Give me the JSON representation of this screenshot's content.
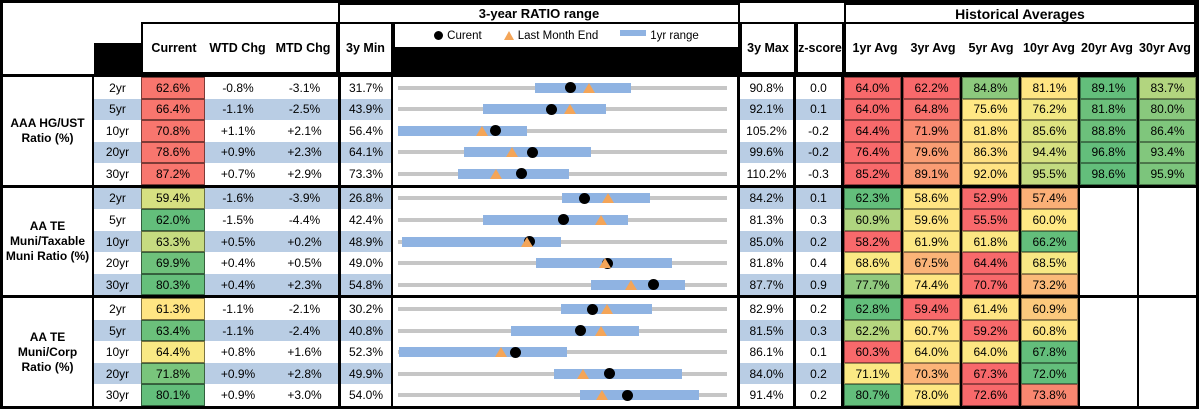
{
  "header": {
    "chart_title": "3-year RATIO range",
    "hist_title": "Historical Averages",
    "col_current": "Current",
    "col_wtd": "WTD Chg",
    "col_mtd": "MTD Chg",
    "col_3y_min": "3y Min",
    "col_3y_max": "3y Max",
    "col_zscore": "z-score",
    "avg_cols": [
      "1yr Avg",
      "3yr Avg",
      "5yr Avg",
      "10yr Avg",
      "20yr Avg",
      "30yr Avg"
    ],
    "legend": {
      "current": "Curent",
      "last_month": "Last Month End",
      "range": "1yr range"
    },
    "legend_icons": [
      "black-dot-icon",
      "orange-triangle-icon",
      "blue-bar-icon"
    ]
  },
  "colors": {
    "stripe_blue": "#B9CDE4",
    "range_bar_blue": "#8FB3E2",
    "track_gray": "#C6C6C6",
    "triangle_orange": "#F4A558",
    "dot_black": "#000000",
    "scale_red": "#F8696B",
    "scale_yellow": "#FFE583",
    "scale_green": "#63BE7B"
  },
  "groups": [
    {
      "label": "AAA HG/UST Ratio (%)",
      "rows": [
        {
          "tenor": "2yr",
          "current": "62.6%",
          "current_bg": "#F8766E",
          "wtd": "-0.8%",
          "mtd": "-3.1%",
          "min": "31.7%",
          "max": "90.8%",
          "z": "0.0",
          "avgs": [
            {
              "v": "64.0%",
              "bg": "#F8696B"
            },
            {
              "v": "62.2%",
              "bg": "#F8696B"
            },
            {
              "v": "84.8%",
              "bg": "#8CC97D"
            },
            {
              "v": "81.1%",
              "bg": "#FFE583"
            },
            {
              "v": "89.1%",
              "bg": "#63BE7B"
            },
            {
              "v": "83.7%",
              "bg": "#B2D57F"
            }
          ]
        },
        {
          "tenor": "5yr",
          "current": "66.4%",
          "current_bg": "#F8766E",
          "wtd": "-1.1%",
          "mtd": "-2.5%",
          "min": "43.9%",
          "max": "92.1%",
          "z": "0.1",
          "avgs": [
            {
              "v": "64.0%",
              "bg": "#F8696B"
            },
            {
              "v": "64.8%",
              "bg": "#F8716D"
            },
            {
              "v": "75.6%",
              "bg": "#FFE884"
            },
            {
              "v": "76.2%",
              "bg": "#F4E883"
            },
            {
              "v": "81.8%",
              "bg": "#6CC07B"
            },
            {
              "v": "80.0%",
              "bg": "#89C87D"
            }
          ]
        },
        {
          "tenor": "10yr",
          "current": "70.8%",
          "current_bg": "#F8766E",
          "wtd": "+1.1%",
          "mtd": "+2.1%",
          "min": "56.4%",
          "max": "105.2%",
          "z": "-0.2",
          "avgs": [
            {
              "v": "64.4%",
              "bg": "#F8696B"
            },
            {
              "v": "71.9%",
              "bg": "#F98B71"
            },
            {
              "v": "81.8%",
              "bg": "#FFE583"
            },
            {
              "v": "85.6%",
              "bg": "#DFE481"
            },
            {
              "v": "88.8%",
              "bg": "#6CC07B"
            },
            {
              "v": "86.4%",
              "bg": "#7FC67C"
            }
          ]
        },
        {
          "tenor": "20yr",
          "current": "78.6%",
          "current_bg": "#F8766E",
          "wtd": "+0.9%",
          "mtd": "+2.3%",
          "min": "64.1%",
          "max": "99.6%",
          "z": "-0.2",
          "avgs": [
            {
              "v": "76.4%",
              "bg": "#F8696B"
            },
            {
              "v": "79.6%",
              "bg": "#FA9D74"
            },
            {
              "v": "86.3%",
              "bg": "#FFE082"
            },
            {
              "v": "94.4%",
              "bg": "#D7E181"
            },
            {
              "v": "96.8%",
              "bg": "#63BE7B"
            },
            {
              "v": "93.4%",
              "bg": "#82C77D"
            }
          ]
        },
        {
          "tenor": "30yr",
          "current": "87.2%",
          "current_bg": "#F8766E",
          "wtd": "+0.7%",
          "mtd": "+2.9%",
          "min": "73.3%",
          "max": "110.2%",
          "z": "-0.3",
          "avgs": [
            {
              "v": "85.2%",
              "bg": "#F8696B"
            },
            {
              "v": "89.1%",
              "bg": "#FA9C74"
            },
            {
              "v": "92.0%",
              "bg": "#FFE383"
            },
            {
              "v": "95.5%",
              "bg": "#C3DB80"
            },
            {
              "v": "98.6%",
              "bg": "#63BE7B"
            },
            {
              "v": "95.9%",
              "bg": "#7CC57C"
            }
          ]
        }
      ]
    },
    {
      "label": "AA TE Muni/Taxable Muni Ratio (%)",
      "rows": [
        {
          "tenor": "2yr",
          "current": "59.4%",
          "current_bg": "#D6E081",
          "wtd": "-1.6%",
          "mtd": "-3.9%",
          "min": "26.8%",
          "max": "84.2%",
          "z": "0.1",
          "avgs": [
            {
              "v": "62.3%",
              "bg": "#63BE7B"
            },
            {
              "v": "58.6%",
              "bg": "#FFE583"
            },
            {
              "v": "52.9%",
              "bg": "#F8696B"
            },
            {
              "v": "57.4%",
              "bg": "#FBB077"
            },
            {
              "v": "",
              "bg": ""
            },
            {
              "v": "",
              "bg": ""
            }
          ]
        },
        {
          "tenor": "5yr",
          "current": "62.0%",
          "current_bg": "#63BE7B",
          "wtd": "-1.5%",
          "mtd": "-4.4%",
          "min": "42.4%",
          "max": "81.3%",
          "z": "0.3",
          "avgs": [
            {
              "v": "60.9%",
              "bg": "#AFD47F"
            },
            {
              "v": "59.6%",
              "bg": "#FEE583"
            },
            {
              "v": "55.5%",
              "bg": "#F8696B"
            },
            {
              "v": "60.0%",
              "bg": "#FFE984"
            },
            {
              "v": "",
              "bg": ""
            },
            {
              "v": "",
              "bg": ""
            }
          ]
        },
        {
          "tenor": "10yr",
          "current": "63.3%",
          "current_bg": "#C6DB80",
          "wtd": "+0.5%",
          "mtd": "+0.2%",
          "min": "48.9%",
          "max": "85.0%",
          "z": "0.2",
          "avgs": [
            {
              "v": "58.2%",
              "bg": "#F8696B"
            },
            {
              "v": "61.9%",
              "bg": "#FCE783"
            },
            {
              "v": "61.8%",
              "bg": "#FCE783"
            },
            {
              "v": "66.2%",
              "bg": "#63BE7B"
            },
            {
              "v": "",
              "bg": ""
            },
            {
              "v": "",
              "bg": ""
            }
          ]
        },
        {
          "tenor": "20yr",
          "current": "69.9%",
          "current_bg": "#6EC17B",
          "wtd": "+0.4%",
          "mtd": "+0.5%",
          "min": "49.0%",
          "max": "81.8%",
          "z": "0.4",
          "avgs": [
            {
              "v": "68.6%",
              "bg": "#FAE984"
            },
            {
              "v": "67.5%",
              "bg": "#FBB478"
            },
            {
              "v": "64.4%",
              "bg": "#F8696B"
            },
            {
              "v": "68.5%",
              "bg": "#F8E884"
            },
            {
              "v": "",
              "bg": ""
            },
            {
              "v": "",
              "bg": ""
            }
          ]
        },
        {
          "tenor": "30yr",
          "current": "80.3%",
          "current_bg": "#65BF7B",
          "wtd": "+0.4%",
          "mtd": "+2.3%",
          "min": "54.8%",
          "max": "87.7%",
          "z": "0.9",
          "avgs": [
            {
              "v": "77.7%",
              "bg": "#90CA7E"
            },
            {
              "v": "74.4%",
              "bg": "#FFE683"
            },
            {
              "v": "70.7%",
              "bg": "#F8696B"
            },
            {
              "v": "73.2%",
              "bg": "#FBBA79"
            },
            {
              "v": "",
              "bg": ""
            },
            {
              "v": "",
              "bg": ""
            }
          ]
        }
      ]
    },
    {
      "label": "AA TE Muni/Corp Ratio (%)",
      "rows": [
        {
          "tenor": "2yr",
          "current": "61.3%",
          "current_bg": "#FFE583",
          "wtd": "-1.1%",
          "mtd": "-2.1%",
          "min": "30.2%",
          "max": "82.9%",
          "z": "0.2",
          "avgs": [
            {
              "v": "62.8%",
              "bg": "#63BE7B"
            },
            {
              "v": "59.4%",
              "bg": "#F8696B"
            },
            {
              "v": "61.4%",
              "bg": "#FFE583"
            },
            {
              "v": "60.9%",
              "bg": "#FCC97D"
            },
            {
              "v": "",
              "bg": ""
            },
            {
              "v": "",
              "bg": ""
            }
          ]
        },
        {
          "tenor": "5yr",
          "current": "63.4%",
          "current_bg": "#6BC07B",
          "wtd": "-1.1%",
          "mtd": "-2.4%",
          "min": "40.8%",
          "max": "81.5%",
          "z": "0.3",
          "avgs": [
            {
              "v": "62.2%",
              "bg": "#B5D67F"
            },
            {
              "v": "60.7%",
              "bg": "#FFE683"
            },
            {
              "v": "59.2%",
              "bg": "#F8696B"
            },
            {
              "v": "60.8%",
              "bg": "#FEE583"
            },
            {
              "v": "",
              "bg": ""
            },
            {
              "v": "",
              "bg": ""
            }
          ]
        },
        {
          "tenor": "10yr",
          "current": "64.4%",
          "current_bg": "#F9E984",
          "wtd": "+0.8%",
          "mtd": "+1.6%",
          "min": "52.3%",
          "max": "86.1%",
          "z": "0.1",
          "avgs": [
            {
              "v": "60.3%",
              "bg": "#F8696B"
            },
            {
              "v": "64.0%",
              "bg": "#FDE783"
            },
            {
              "v": "64.0%",
              "bg": "#FDE783"
            },
            {
              "v": "67.8%",
              "bg": "#63BE7B"
            },
            {
              "v": "",
              "bg": ""
            },
            {
              "v": "",
              "bg": ""
            }
          ]
        },
        {
          "tenor": "20yr",
          "current": "71.8%",
          "current_bg": "#79C57C",
          "wtd": "+0.9%",
          "mtd": "+2.8%",
          "min": "49.9%",
          "max": "84.0%",
          "z": "0.2",
          "avgs": [
            {
              "v": "71.1%",
              "bg": "#FBE984"
            },
            {
              "v": "70.3%",
              "bg": "#FBB478"
            },
            {
              "v": "67.3%",
              "bg": "#F8696B"
            },
            {
              "v": "72.0%",
              "bg": "#63BE7B"
            },
            {
              "v": "",
              "bg": ""
            },
            {
              "v": "",
              "bg": ""
            }
          ]
        },
        {
          "tenor": "30yr",
          "current": "80.1%",
          "current_bg": "#63BE7B",
          "wtd": "+0.9%",
          "mtd": "+3.0%",
          "min": "54.0%",
          "max": "91.4%",
          "z": "0.2",
          "avgs": [
            {
              "v": "80.7%",
              "bg": "#63BE7B"
            },
            {
              "v": "78.0%",
              "bg": "#FEE783"
            },
            {
              "v": "72.6%",
              "bg": "#F8696B"
            },
            {
              "v": "73.8%",
              "bg": "#F98770"
            },
            {
              "v": "",
              "bg": ""
            },
            {
              "v": "",
              "bg": ""
            }
          ]
        }
      ]
    }
  ],
  "chart_data": {
    "type": "dot_range",
    "title": "3-year RATIO range",
    "legend": [
      {
        "label": "Curent",
        "marker": "black-dot"
      },
      {
        "label": "Last Month End",
        "marker": "orange-triangle"
      },
      {
        "label": "1yr range",
        "marker": "blue-bar"
      }
    ],
    "axis_note": "each row is scaled from its own 3y Min to 3y Max (ratio %)",
    "rows": [
      {
        "group": "AAA HG/UST Ratio (%)",
        "tenor": "2yr",
        "min": 31.7,
        "max": 90.8,
        "yr1_lo": 56.3,
        "yr1_hi": 73.6,
        "current": 62.6,
        "last_month_end": 66.0
      },
      {
        "group": "AAA HG/UST Ratio (%)",
        "tenor": "5yr",
        "min": 43.9,
        "max": 92.1,
        "yr1_lo": 56.3,
        "yr1_hi": 74.4,
        "current": 66.4,
        "last_month_end": 69.1
      },
      {
        "group": "AAA HG/UST Ratio (%)",
        "tenor": "10yr",
        "min": 56.4,
        "max": 105.2,
        "yr1_lo": 56.4,
        "yr1_hi": 75.6,
        "current": 70.8,
        "last_month_end": 68.8
      },
      {
        "group": "AAA HG/UST Ratio (%)",
        "tenor": "20yr",
        "min": 64.1,
        "max": 99.6,
        "yr1_lo": 71.2,
        "yr1_hi": 84.9,
        "current": 78.6,
        "last_month_end": 76.4
      },
      {
        "group": "AAA HG/UST Ratio (%)",
        "tenor": "30yr",
        "min": 73.3,
        "max": 110.2,
        "yr1_lo": 80.0,
        "yr1_hi": 92.5,
        "current": 87.2,
        "last_month_end": 84.3
      },
      {
        "group": "AA TE Muni/Taxable Muni Ratio (%)",
        "tenor": "2yr",
        "min": 26.8,
        "max": 84.2,
        "yr1_lo": 55.4,
        "yr1_hi": 70.8,
        "current": 59.4,
        "last_month_end": 63.5
      },
      {
        "group": "AA TE Muni/Taxable Muni Ratio (%)",
        "tenor": "5yr",
        "min": 42.4,
        "max": 81.3,
        "yr1_lo": 52.4,
        "yr1_hi": 69.6,
        "current": 62.0,
        "last_month_end": 66.4
      },
      {
        "group": "AA TE Muni/Taxable Muni Ratio (%)",
        "tenor": "10yr",
        "min": 48.9,
        "max": 85.0,
        "yr1_lo": 49.3,
        "yr1_hi": 66.8,
        "current": 63.3,
        "last_month_end": 63.1
      },
      {
        "group": "AA TE Muni/Taxable Muni Ratio (%)",
        "tenor": "20yr",
        "min": 49.0,
        "max": 81.8,
        "yr1_lo": 62.8,
        "yr1_hi": 76.3,
        "current": 69.9,
        "last_month_end": 69.6
      },
      {
        "group": "AA TE Muni/Taxable Muni Ratio (%)",
        "tenor": "30yr",
        "min": 54.8,
        "max": 87.7,
        "yr1_lo": 74.1,
        "yr1_hi": 83.5,
        "current": 80.3,
        "last_month_end": 78.1
      },
      {
        "group": "AA TE Muni/Corp Ratio (%)",
        "tenor": "2yr",
        "min": 30.2,
        "max": 82.9,
        "yr1_lo": 56.3,
        "yr1_hi": 70.9,
        "current": 61.3,
        "last_month_end": 63.7
      },
      {
        "group": "AA TE Muni/Corp Ratio (%)",
        "tenor": "5yr",
        "min": 40.8,
        "max": 81.5,
        "yr1_lo": 54.8,
        "yr1_hi": 70.6,
        "current": 63.4,
        "last_month_end": 65.9
      },
      {
        "group": "AA TE Muni/Corp Ratio (%)",
        "tenor": "10yr",
        "min": 52.3,
        "max": 86.1,
        "yr1_lo": 52.4,
        "yr1_hi": 69.7,
        "current": 64.4,
        "last_month_end": 62.9
      },
      {
        "group": "AA TE Muni/Corp Ratio (%)",
        "tenor": "20yr",
        "min": 49.9,
        "max": 84.0,
        "yr1_lo": 66.1,
        "yr1_hi": 79.3,
        "current": 71.8,
        "last_month_end": 69.1
      },
      {
        "group": "AA TE Muni/Corp Ratio (%)",
        "tenor": "30yr",
        "min": 54.0,
        "max": 91.4,
        "yr1_lo": 74.7,
        "yr1_hi": 88.2,
        "current": 80.1,
        "last_month_end": 77.2
      }
    ]
  }
}
